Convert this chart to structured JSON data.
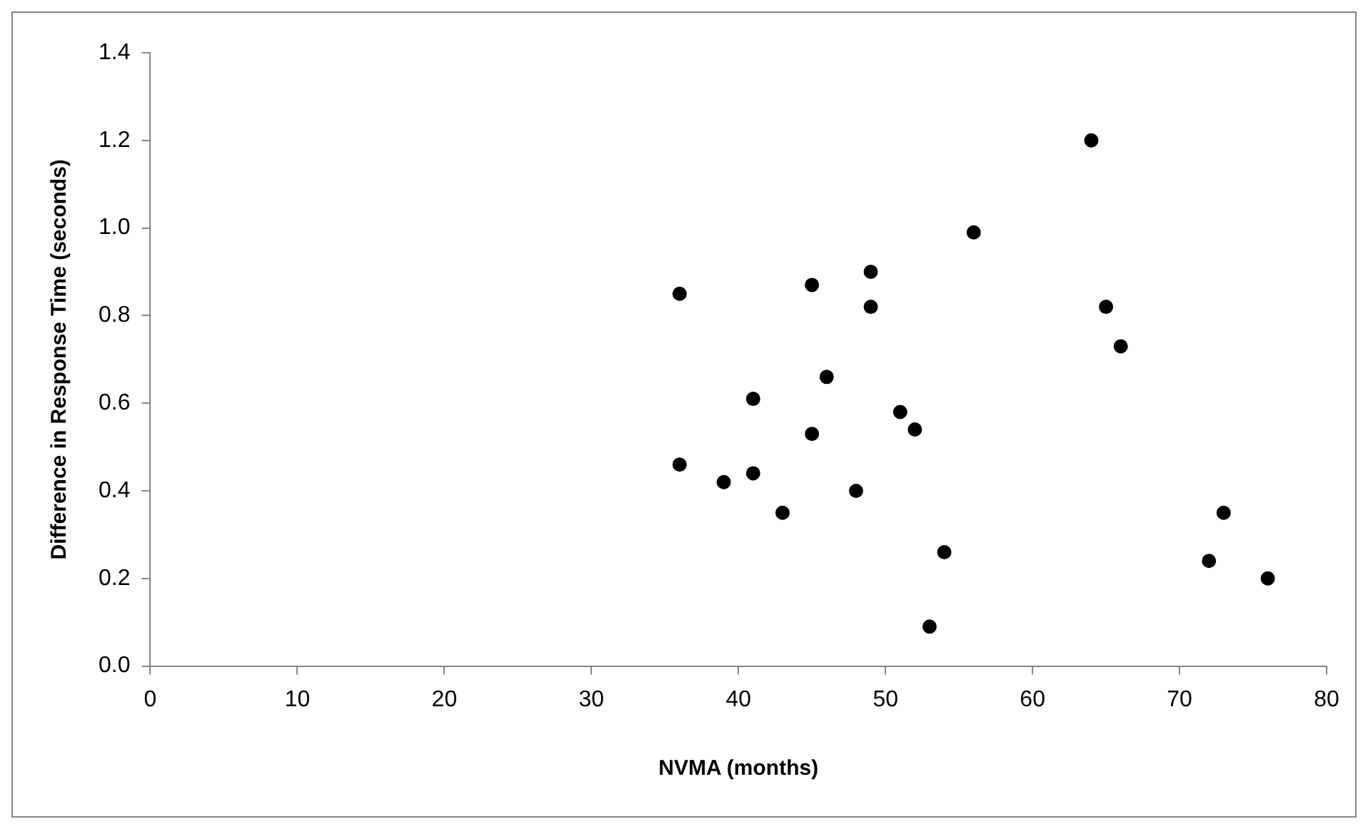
{
  "chart_data": {
    "type": "scatter",
    "xlabel": "NVMA (months)",
    "ylabel": "Difference in Response Time (seconds)",
    "x": [
      36,
      36,
      39,
      41,
      41,
      43,
      45,
      45,
      46,
      48,
      49,
      49,
      51,
      52,
      53,
      54,
      56,
      64,
      65,
      66,
      72,
      73,
      76
    ],
    "values": [
      0.85,
      0.46,
      0.42,
      0.61,
      0.44,
      0.35,
      0.87,
      0.53,
      0.66,
      0.4,
      0.9,
      0.82,
      0.58,
      0.54,
      0.09,
      0.26,
      0.99,
      1.2,
      0.82,
      0.73,
      0.24,
      0.35,
      0.2
    ],
    "color": "#000000",
    "marker": "circle",
    "grid": false,
    "legend": false,
    "xlim": [
      0,
      80
    ],
    "xticks": [
      0,
      10,
      20,
      30,
      40,
      50,
      60,
      70,
      80
    ],
    "ylim": [
      0,
      1.4
    ],
    "yticks": [
      {
        "value": 0,
        "label": "0.0"
      },
      {
        "value": 0.2,
        "label": "0.2"
      },
      {
        "value": 0.4,
        "label": "0.4"
      },
      {
        "value": 0.6,
        "label": "0.6"
      },
      {
        "value": 0.8,
        "label": "0.8"
      },
      {
        "value": 1,
        "label": "1.0"
      },
      {
        "value": 1.2,
        "label": "1.2"
      },
      {
        "value": 1.4,
        "label": "1.4"
      }
    ]
  }
}
